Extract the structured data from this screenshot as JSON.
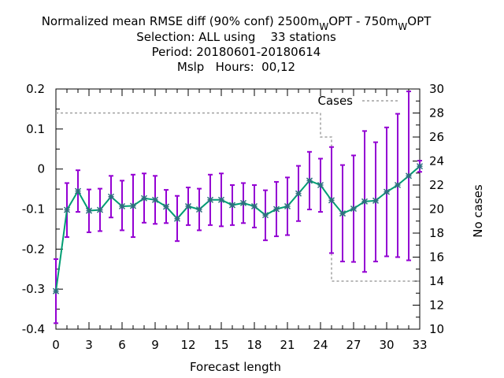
{
  "title": {
    "line1": "Normalized mean RMSE diff (90% conf) 2500m",
    "line1_sub1": "W",
    "line1_mid": "OPT - 750m",
    "line1_sub2": "W",
    "line1_end": "OPT",
    "line2": "Selection: ALL using    33 stations",
    "line3": "Period: 20180601-20180614",
    "line4": "Mslp   Hours:  00,12"
  },
  "chart_data": {
    "type": "line",
    "xlabel": "Forecast length",
    "ylabel": "",
    "y2label": "No cases",
    "xlim": [
      0,
      33
    ],
    "ylim": [
      -0.4,
      0.2
    ],
    "y2lim": [
      10,
      30
    ],
    "xticks": [
      "0",
      "3",
      "6",
      "9",
      "12",
      "15",
      "18",
      "21",
      "24",
      "27",
      "30",
      "33"
    ],
    "yticks": [
      "0.2",
      "0.1",
      "0",
      "-0.1",
      "-0.2",
      "-0.3",
      "-0.4"
    ],
    "y2ticks": [
      "30",
      "28",
      "26",
      "24",
      "22",
      "20",
      "18",
      "16",
      "14",
      "12",
      "10"
    ],
    "grid": false,
    "legend": {
      "position": "top-right",
      "entries": [
        "Cases"
      ]
    },
    "colors": {
      "mean": "#009e73",
      "errorbar": "#9400d3",
      "cases": "#a0a0a0",
      "marker": "#2f6f7f"
    },
    "series": [
      {
        "kind": "mean_with_ci",
        "x": [
          0,
          1,
          2,
          3,
          4,
          5,
          6,
          7,
          8,
          9,
          10,
          11,
          12,
          13,
          14,
          15,
          16,
          17,
          18,
          19,
          20,
          21,
          22,
          23,
          24,
          25,
          26,
          27,
          28,
          29,
          30,
          31,
          32,
          33
        ],
        "values": [
          -0.305,
          -0.102,
          -0.055,
          -0.104,
          -0.102,
          -0.069,
          -0.093,
          -0.092,
          -0.073,
          -0.077,
          -0.094,
          -0.124,
          -0.093,
          -0.101,
          -0.077,
          -0.077,
          -0.09,
          -0.085,
          -0.093,
          -0.115,
          -0.1,
          -0.093,
          -0.061,
          -0.029,
          -0.04,
          -0.078,
          -0.111,
          -0.099,
          -0.081,
          -0.079,
          -0.057,
          -0.04,
          -0.017,
          0.007
        ],
        "lower": [
          -0.385,
          -0.17,
          -0.107,
          -0.158,
          -0.155,
          -0.121,
          -0.153,
          -0.17,
          -0.134,
          -0.137,
          -0.135,
          -0.18,
          -0.14,
          -0.153,
          -0.14,
          -0.143,
          -0.14,
          -0.135,
          -0.146,
          -0.178,
          -0.168,
          -0.165,
          -0.13,
          -0.101,
          -0.107,
          -0.21,
          -0.231,
          -0.232,
          -0.257,
          -0.231,
          -0.218,
          -0.22,
          -0.228,
          -0.007
        ],
        "upper": [
          -0.225,
          -0.035,
          -0.003,
          -0.051,
          -0.049,
          -0.017,
          -0.029,
          -0.014,
          -0.011,
          -0.017,
          -0.052,
          -0.067,
          -0.046,
          -0.049,
          -0.014,
          -0.011,
          -0.04,
          -0.035,
          -0.04,
          -0.053,
          -0.032,
          -0.021,
          0.008,
          0.043,
          0.026,
          0.055,
          0.01,
          0.034,
          0.095,
          0.067,
          0.104,
          0.138,
          0.194,
          0.021
        ]
      },
      {
        "name": "Cases",
        "kind": "cases_step",
        "axis": "y2",
        "x": [
          0,
          24,
          24,
          25,
          25,
          33
        ],
        "values": [
          28,
          28,
          26,
          26,
          14,
          14
        ]
      }
    ]
  }
}
